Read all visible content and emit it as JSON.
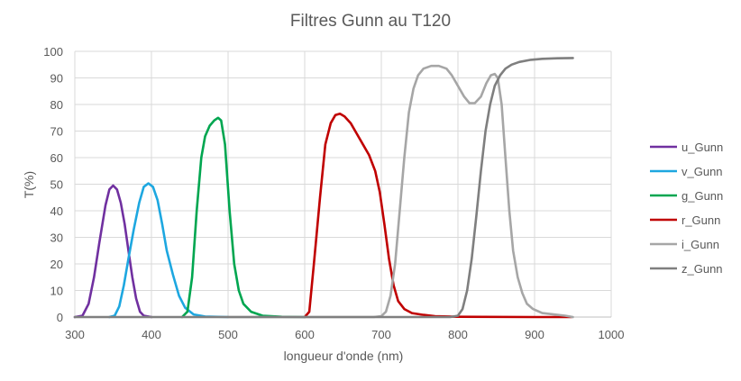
{
  "chart_data": {
    "type": "line",
    "title": "Filtres Gunn au T120",
    "xlabel": "longueur d'onde (nm)",
    "ylabel": "T(%)",
    "xlim": [
      300,
      1000
    ],
    "ylim": [
      0,
      100
    ],
    "xticks": [
      300,
      400,
      500,
      600,
      700,
      800,
      900,
      1000
    ],
    "yticks": [
      0,
      10,
      20,
      30,
      40,
      50,
      60,
      70,
      80,
      90,
      100
    ],
    "grid": true,
    "legend_position": "right",
    "series": [
      {
        "name": "u_Gunn",
        "color": "#7030a0",
        "points": [
          [
            300,
            0
          ],
          [
            310,
            0.5
          ],
          [
            318,
            5
          ],
          [
            325,
            15
          ],
          [
            332,
            28
          ],
          [
            340,
            42
          ],
          [
            345,
            48
          ],
          [
            350,
            49.5
          ],
          [
            355,
            48
          ],
          [
            360,
            43
          ],
          [
            365,
            35
          ],
          [
            370,
            25
          ],
          [
            375,
            15
          ],
          [
            380,
            7
          ],
          [
            385,
            2
          ],
          [
            390,
            0.5
          ],
          [
            400,
            0
          ]
        ]
      },
      {
        "name": "v_Gunn",
        "color": "#1da7e0",
        "points": [
          [
            345,
            0
          ],
          [
            352,
            0.5
          ],
          [
            358,
            4
          ],
          [
            364,
            12
          ],
          [
            370,
            22
          ],
          [
            377,
            33
          ],
          [
            384,
            43
          ],
          [
            390,
            49
          ],
          [
            396,
            50.3
          ],
          [
            402,
            49
          ],
          [
            408,
            44
          ],
          [
            414,
            35
          ],
          [
            420,
            25
          ],
          [
            428,
            16
          ],
          [
            436,
            8
          ],
          [
            444,
            3.5
          ],
          [
            455,
            1
          ],
          [
            470,
            0.2
          ],
          [
            500,
            0
          ]
        ]
      },
      {
        "name": "g_Gunn",
        "color": "#00a650",
        "points": [
          [
            440,
            0
          ],
          [
            447,
            2
          ],
          [
            453,
            15
          ],
          [
            459,
            40
          ],
          [
            465,
            60
          ],
          [
            470,
            68
          ],
          [
            476,
            72
          ],
          [
            482,
            74
          ],
          [
            487,
            75
          ],
          [
            491,
            74
          ],
          [
            496,
            65
          ],
          [
            502,
            40
          ],
          [
            508,
            20
          ],
          [
            514,
            10
          ],
          [
            520,
            5
          ],
          [
            530,
            2
          ],
          [
            545,
            0.5
          ],
          [
            570,
            0.1
          ],
          [
            600,
            0
          ]
        ]
      },
      {
        "name": "r_Gunn",
        "color": "#c00000",
        "points": [
          [
            600,
            0
          ],
          [
            606,
            2
          ],
          [
            612,
            20
          ],
          [
            620,
            45
          ],
          [
            627,
            65
          ],
          [
            634,
            73
          ],
          [
            640,
            76
          ],
          [
            646,
            76.5
          ],
          [
            652,
            75.5
          ],
          [
            660,
            73
          ],
          [
            668,
            69
          ],
          [
            676,
            65
          ],
          [
            684,
            61
          ],
          [
            692,
            55
          ],
          [
            698,
            47
          ],
          [
            704,
            35
          ],
          [
            710,
            22
          ],
          [
            716,
            12
          ],
          [
            722,
            6
          ],
          [
            730,
            3
          ],
          [
            740,
            1.5
          ],
          [
            755,
            0.8
          ],
          [
            770,
            0.3
          ],
          [
            800,
            0.1
          ],
          [
            900,
            0
          ],
          [
            948,
            0
          ]
        ]
      },
      {
        "name": "i_Gunn",
        "color": "#a6a6a6",
        "points": [
          [
            500,
            0
          ],
          [
            690,
            0
          ],
          [
            700,
            0.3
          ],
          [
            706,
            2
          ],
          [
            712,
            8
          ],
          [
            718,
            20
          ],
          [
            724,
            40
          ],
          [
            730,
            60
          ],
          [
            736,
            77
          ],
          [
            742,
            86
          ],
          [
            748,
            91
          ],
          [
            755,
            93.5
          ],
          [
            765,
            94.5
          ],
          [
            775,
            94.5
          ],
          [
            785,
            93.5
          ],
          [
            792,
            91
          ],
          [
            800,
            87
          ],
          [
            808,
            83
          ],
          [
            815,
            80.5
          ],
          [
            822,
            80.5
          ],
          [
            830,
            83
          ],
          [
            837,
            88
          ],
          [
            843,
            91
          ],
          [
            848,
            91.5
          ],
          [
            852,
            90
          ],
          [
            857,
            80
          ],
          [
            862,
            60
          ],
          [
            867,
            40
          ],
          [
            872,
            25
          ],
          [
            878,
            15
          ],
          [
            884,
            9
          ],
          [
            890,
            5
          ],
          [
            898,
            3
          ],
          [
            910,
            1.5
          ],
          [
            925,
            1
          ],
          [
            940,
            0.5
          ],
          [
            950,
            0
          ]
        ]
      },
      {
        "name": "z_Gunn",
        "color": "#7f7f7f",
        "points": [
          [
            300,
            0
          ],
          [
            790,
            0
          ],
          [
            800,
            0.5
          ],
          [
            806,
            3
          ],
          [
            812,
            10
          ],
          [
            818,
            22
          ],
          [
            824,
            38
          ],
          [
            830,
            55
          ],
          [
            836,
            70
          ],
          [
            842,
            80
          ],
          [
            848,
            87
          ],
          [
            855,
            91
          ],
          [
            862,
            93.5
          ],
          [
            870,
            95
          ],
          [
            880,
            96
          ],
          [
            895,
            96.8
          ],
          [
            910,
            97.2
          ],
          [
            930,
            97.4
          ],
          [
            950,
            97.5
          ]
        ]
      }
    ]
  }
}
